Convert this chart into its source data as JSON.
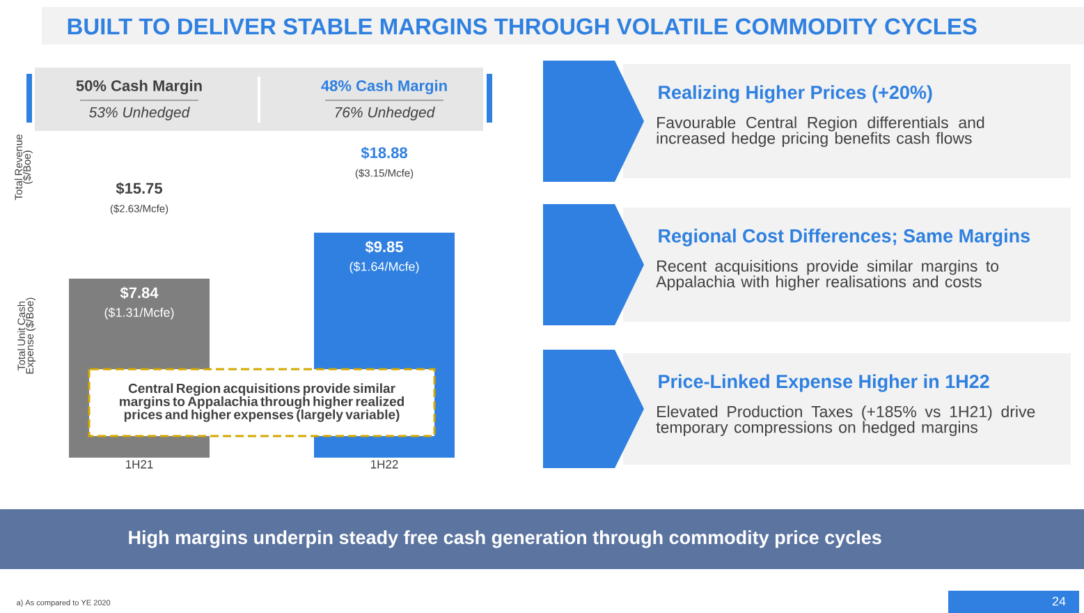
{
  "chart_data": {
    "type": "bar",
    "title": "BUILT TO DELIVER STABLE MARGINS THROUGH VOLATILE COMMODITY CYCLES",
    "categories": [
      "1H21",
      "1H22"
    ],
    "series": [
      {
        "colors": [
          "#7f7f7f",
          "#2f80e0"
        ],
        "values": [
          7.84,
          9.85
        ],
        "value_labels": [
          "$7.84",
          "$9.85"
        ]
      }
    ],
    "annotations": [
      "50% Cash Margin",
      "53% Unhedged",
      "48% Cash Margin",
      "76% Unhedged",
      "$15.75",
      "($2.63/Mcfe)",
      "$18.88",
      "($3.15/Mcfe)",
      {
        "text": "($1.31/Mcfe)",
        "x": "1H21",
        "y": 7.84
      },
      {
        "text": "($1.64/Mcfe)",
        "x": "1H22",
        "y": 9.85
      },
      "Total Revenue ($/Boe)",
      "Central Region acquisitions provide similar margins to Appalachia through higher realized prices and higher expenses (largely variable)",
      "Realizing Higher Prices (+20%)",
      "Favourable Central Region differentials and increased hedge pricing benefits cash flows",
      "Regional Cost Differences; Same Margins",
      "Recent acquisitions provide similar margins to Appalachia with higher realisations and costs",
      "Price-Linked Expense Higher in 1H22",
      "Elevated Production Taxes (+185% vs 1H21) drive temporary compressions on hedged margins",
      "High margins underpin steady free cash generation through commodity price cycles",
      "a)  As compared to YE 2020",
      "24",
      "Total Unit Cash Expense ($/Boe)"
    ]
  }
}
